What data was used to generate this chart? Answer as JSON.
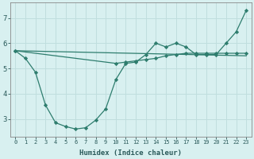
{
  "line1_x": [
    0,
    1,
    2,
    3,
    4,
    5,
    6,
    7,
    8,
    9,
    10,
    11,
    12,
    13,
    14,
    15,
    16,
    17,
    18,
    19,
    20,
    21,
    22,
    23
  ],
  "line1_y": [
    5.7,
    5.4,
    4.85,
    3.55,
    2.85,
    2.7,
    2.6,
    2.65,
    2.95,
    3.4,
    4.55,
    5.2,
    5.25,
    5.55,
    6.0,
    5.85,
    6.0,
    5.85,
    5.55,
    5.55,
    5.55,
    6.0,
    6.45,
    7.3
  ],
  "line2_x": [
    0,
    10,
    11,
    12,
    13,
    14,
    15,
    16,
    17,
    18,
    19,
    20,
    21,
    22,
    23
  ],
  "line2_y": [
    5.7,
    5.2,
    5.25,
    5.3,
    5.35,
    5.4,
    5.5,
    5.55,
    5.6,
    5.6,
    5.6,
    5.6,
    5.6,
    5.6,
    5.6
  ],
  "line3_x": [
    0,
    23
  ],
  "line3_y": [
    5.7,
    5.5
  ],
  "line_color": "#2e7d6e",
  "bg_color": "#d8f0f0",
  "grid_color": "#c0dede",
  "xlabel": "Humidex (Indice chaleur)",
  "xlim": [
    -0.5,
    23.5
  ],
  "ylim": [
    2.3,
    7.6
  ],
  "yticks": [
    3,
    4,
    5,
    6,
    7
  ],
  "xticks": [
    0,
    1,
    2,
    3,
    4,
    5,
    6,
    7,
    8,
    9,
    10,
    11,
    12,
    13,
    14,
    15,
    16,
    17,
    18,
    19,
    20,
    21,
    22,
    23
  ]
}
